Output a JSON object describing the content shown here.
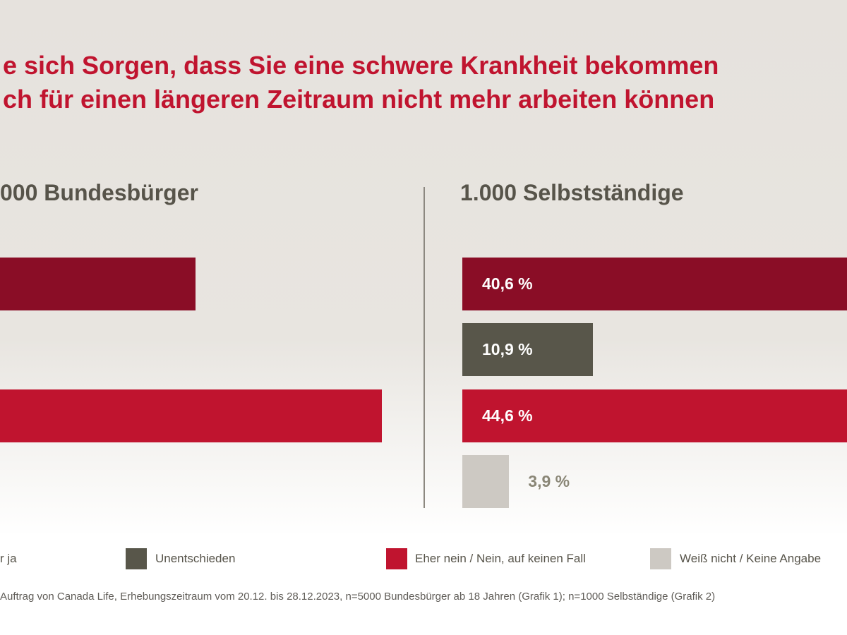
{
  "title": {
    "line1": "e sich Sorgen, dass Sie eine schwere Krankheit bekommen",
    "line2": "ch für einen längeren Zeitraum nicht mehr arbeiten können"
  },
  "colors": {
    "title": "#c0142f",
    "ja": "#8a0d26",
    "unentschieden": "#58564a",
    "nein": "#c0142f",
    "weiss_nicht": "#cdc9c3"
  },
  "chart_data": [
    {
      "type": "bar",
      "orientation": "horizontal",
      "title": "000 Bundesbürger",
      "categories": [
        "r ja",
        "Unentschieden",
        "Eher nein / Nein, auf keinen Fall",
        "Weiß nicht / Keine Angabe"
      ],
      "values": [
        null,
        null,
        null,
        null
      ],
      "value_labels": []
    },
    {
      "type": "bar",
      "orientation": "horizontal",
      "title": "1.000 Selbstständige",
      "categories": [
        "r ja",
        "Unentschieden",
        "Eher nein / Nein, auf keinen Fall",
        "Weiß nicht / Keine Angabe"
      ],
      "values": [
        40.6,
        10.9,
        44.6,
        3.9
      ],
      "value_labels": [
        "40,6 %",
        "10,9 %",
        "44,6 %",
        "3,9 %"
      ],
      "xlim": [
        0,
        100
      ]
    }
  ],
  "legend": [
    {
      "label": "r ja",
      "color": "#8a0d26"
    },
    {
      "label": "Unentschieden",
      "color": "#58564a"
    },
    {
      "label": "Eher nein / Nein, auf keinen Fall",
      "color": "#c0142f"
    },
    {
      "label": "Weiß nicht / Keine Angabe",
      "color": "#cdc9c3"
    }
  ],
  "footnote": "Auftrag von Canada Life, Erhebungszeitraum vom 20.12. bis 28.12.2023, n=5000 Bundesbürger ab 18 Jahren (Grafik 1); n=1000 Selbständige (Grafik 2)"
}
